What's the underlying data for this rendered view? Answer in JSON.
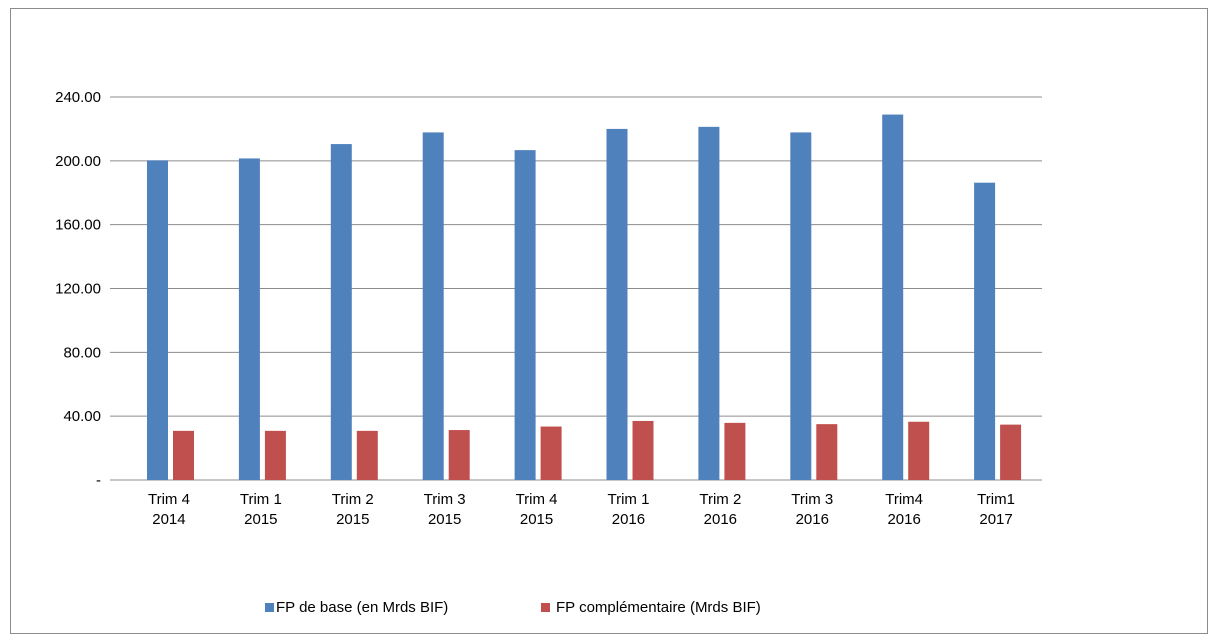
{
  "chart_data": {
    "type": "bar",
    "categories": [
      [
        "Trim 4",
        "2014"
      ],
      [
        "Trim 1",
        "2015"
      ],
      [
        "Trim 2",
        "2015"
      ],
      [
        "Trim 3",
        "2015"
      ],
      [
        "Trim 4",
        "2015"
      ],
      [
        "Trim 1",
        "2016"
      ],
      [
        "Trim 2",
        "2016"
      ],
      [
        "Trim 3",
        "2016"
      ],
      [
        "Trim4",
        "2016"
      ],
      [
        "Trim1",
        "2017"
      ]
    ],
    "series": [
      {
        "name": "FP de base (en Mrds BIF)",
        "color": "#4f81bd",
        "values": [
          200.3,
          201.5,
          210.5,
          217.8,
          206.7,
          220.0,
          221.3,
          217.8,
          229.0,
          186.3
        ]
      },
      {
        "name": "FP complémentaire (Mrds BIF)",
        "color": "#c0504d",
        "values": [
          30.8,
          30.8,
          30.8,
          31.3,
          33.5,
          37.0,
          35.8,
          35.0,
          36.5,
          34.7
        ]
      }
    ],
    "ylim": [
      0,
      240
    ],
    "yticks": [
      0,
      40,
      80,
      120,
      160,
      200,
      240
    ],
    "ytick_labels": [
      "-",
      "40.00",
      "80.00",
      "120.00",
      "160.00",
      "200.00",
      "240.00"
    ],
    "grid": true,
    "legend_position": "bottom",
    "title": "",
    "xlabel": "",
    "ylabel": ""
  }
}
